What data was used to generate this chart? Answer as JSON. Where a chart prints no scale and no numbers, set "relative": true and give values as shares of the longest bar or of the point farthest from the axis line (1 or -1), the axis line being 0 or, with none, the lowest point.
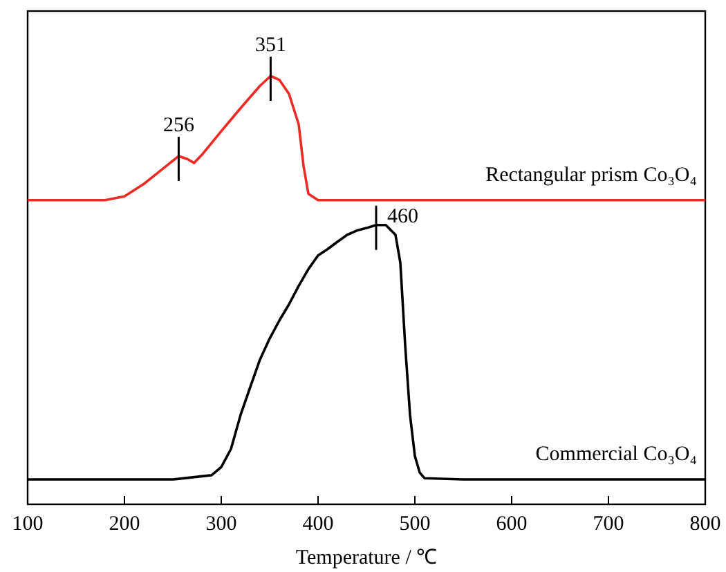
{
  "chart_data": {
    "type": "line",
    "relative": true,
    "xlabel": "Temperature / ℃",
    "xlim": [
      100,
      800
    ],
    "xticks": [
      100,
      200,
      300,
      400,
      500,
      600,
      700,
      800
    ],
    "grid": false,
    "line_style": "solid",
    "tick_labels": "x",
    "series": [
      {
        "name": "Rectangular prism Co₃O₄",
        "color": "#ee2a24",
        "x": [
          100,
          180,
          200,
          220,
          240,
          256,
          265,
          272,
          280,
          300,
          320,
          340,
          351,
          360,
          370,
          380,
          385,
          390,
          400,
          800
        ],
        "values": [
          0.71,
          0.71,
          0.719,
          0.748,
          0.784,
          0.813,
          0.806,
          0.797,
          0.816,
          0.871,
          0.925,
          0.977,
          1.0,
          0.991,
          0.958,
          0.887,
          0.79,
          0.725,
          0.71,
          0.71
        ]
      },
      {
        "name": "Commercial Co₃O₄",
        "color": "#000000",
        "x": [
          100,
          250,
          290,
          300,
          310,
          320,
          330,
          340,
          350,
          360,
          370,
          380,
          390,
          400,
          410,
          420,
          430,
          440,
          450,
          460,
          470,
          480,
          485,
          490,
          495,
          500,
          505,
          510,
          550,
          800
        ],
        "values": [
          0.058,
          0.058,
          0.068,
          0.087,
          0.129,
          0.209,
          0.274,
          0.338,
          0.387,
          0.429,
          0.467,
          0.51,
          0.549,
          0.581,
          0.596,
          0.613,
          0.629,
          0.639,
          0.645,
          0.652,
          0.652,
          0.629,
          0.564,
          0.371,
          0.209,
          0.113,
          0.074,
          0.061,
          0.058,
          0.058
        ]
      }
    ],
    "annotations": [
      {
        "text": "256",
        "x": 256,
        "y": 0.813
      },
      {
        "text": "351",
        "x": 351,
        "y": 1.0
      },
      {
        "text": "460",
        "x": 460,
        "y": 0.652
      }
    ]
  }
}
